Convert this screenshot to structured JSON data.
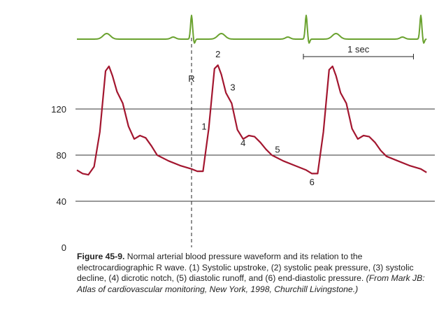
{
  "chart_data": {
    "type": "line",
    "title": "",
    "xlabel": "",
    "ylabel": "",
    "ylim": [
      0,
      160
    ],
    "y_ticks": [
      "0",
      "40",
      "80",
      "120"
    ],
    "grid": "horizontal lines at y ticks",
    "series": [
      {
        "name": "ECG",
        "color": "#6aa22f",
        "role": "top trace"
      },
      {
        "name": "Arterial blood pressure",
        "color": "#a3162f",
        "x_sec": [
          0.0,
          0.05,
          0.1,
          0.15,
          0.2,
          0.25,
          0.28,
          0.31,
          0.35,
          0.4,
          0.45,
          0.5,
          0.55,
          0.6,
          0.65,
          0.7,
          0.8,
          0.9,
          1.0,
          1.05,
          1.1,
          1.15,
          1.2,
          1.23,
          1.26,
          1.3,
          1.35,
          1.4,
          1.45,
          1.5,
          1.55,
          1.6,
          1.65,
          1.7,
          1.8,
          1.9,
          2.0,
          2.05,
          2.1,
          2.15,
          2.2,
          2.23,
          2.26,
          2.3,
          2.35,
          2.4,
          2.45,
          2.5,
          2.55,
          2.6,
          2.65,
          2.7,
          2.8,
          2.9,
          3.0,
          3.05
        ],
        "pressure_mmHg": [
          67,
          64,
          63,
          70,
          100,
          153,
          157,
          149,
          135,
          125,
          105,
          94,
          97,
          95,
          88,
          80,
          75,
          71,
          68,
          66,
          66,
          103,
          155,
          158,
          150,
          134,
          125,
          102,
          94,
          97,
          96,
          91,
          85,
          80,
          75,
          71,
          67,
          64,
          64,
          100,
          154,
          157,
          149,
          134,
          125,
          103,
          94,
          97,
          96,
          91,
          84,
          79,
          75,
          71,
          68,
          65
        ]
      }
    ],
    "annotations": [
      {
        "label": "R",
        "x_sec": 1.0,
        "note": "dashed vertical line at ECG R wave"
      },
      {
        "label": "1",
        "x_sec": 1.11,
        "y": 102
      },
      {
        "label": "2",
        "x_sec": 1.23,
        "y": 165
      },
      {
        "label": "3",
        "x_sec": 1.36,
        "y": 136
      },
      {
        "label": "4",
        "x_sec": 1.45,
        "y": 88
      },
      {
        "label": "5",
        "x_sec": 1.75,
        "y": 82
      },
      {
        "label": "6",
        "x_sec": 2.05,
        "y": 54
      }
    ],
    "scale_bar": {
      "label": "1 sec",
      "length_sec": 1.0
    }
  },
  "caption": {
    "figure_label": "Figure 45-9.",
    "text": " Normal arterial blood pressure waveform and its relation to the electrocardiographic R wave. (1) Systolic upstroke, (2) systolic peak pressure, (3) systolic decline, (4) dicrotic notch, (5) diastolic runoff, and (6) end-diastolic pressure. ",
    "source": "(From Mark JB: Atlas of cardiovascular monitoring, New York, 1998, Churchill Livingstone.)"
  }
}
